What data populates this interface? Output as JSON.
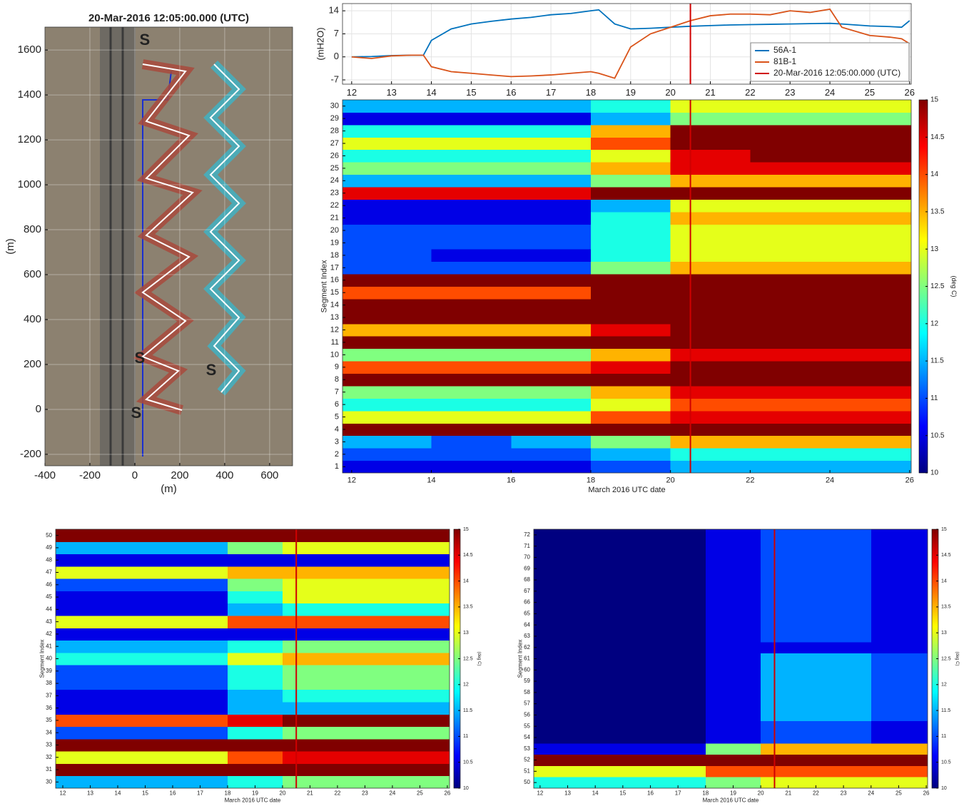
{
  "chart_data": [
    {
      "type": "map",
      "title": "20-Mar-2016 12:05:00.000 (UTC)",
      "xlabel": "(m)",
      "ylabel": "(m)",
      "xlim": [
        -400,
        702
      ],
      "ylim": [
        -251,
        1702
      ],
      "xticks": [
        -400,
        -200,
        0,
        200,
        400,
        600
      ],
      "yticks": [
        -200,
        0,
        200,
        400,
        600,
        800,
        1000,
        1200,
        1400,
        1600
      ],
      "grid": true,
      "annotation_color": "#e8202a",
      "annotations": [
        {
          "text": "S",
          "x": 44,
          "y": 1641
        },
        {
          "text": "S",
          "x": 22,
          "y": 225
        },
        {
          "text": "S",
          "x": 340,
          "y": 171
        },
        {
          "text": "S",
          "x": 6,
          "y": -19
        }
      ]
    },
    {
      "type": "line",
      "ylabel": "(mH2O)",
      "xlim": [
        11.77,
        26.04
      ],
      "ylim": [
        -8.3,
        16.2
      ],
      "xticks": [
        12,
        13,
        14,
        15,
        16,
        17,
        18,
        19,
        20,
        21,
        22,
        23,
        24,
        25,
        26
      ],
      "yticks": [
        -7,
        0,
        7,
        14
      ],
      "grid": true,
      "legend": "upper right",
      "x": [
        12,
        12.5,
        13,
        13.5,
        13.8,
        14,
        14.5,
        15,
        15.5,
        16,
        16.5,
        17,
        17.5,
        18,
        18.2,
        18.6,
        19,
        19.5,
        20,
        20.5,
        21,
        21.5,
        22,
        22.5,
        23,
        23.5,
        24,
        24.3,
        25,
        25.5,
        25.8,
        26
      ],
      "series": [
        {
          "name": "56A-1",
          "color": "#0072bd",
          "values": [
            0,
            0.1,
            0.4,
            0.5,
            0.5,
            5,
            8.5,
            10,
            10.8,
            11.5,
            12,
            12.8,
            13.2,
            14,
            14.3,
            10,
            8.5,
            8.7,
            9,
            9.3,
            9.5,
            9.7,
            9.8,
            9.9,
            10,
            10.1,
            10.2,
            10,
            9.4,
            9.2,
            9,
            11
          ]
        },
        {
          "name": "81B-1",
          "color": "#d95319",
          "values": [
            0,
            -0.5,
            0.3,
            0.5,
            0.5,
            -3,
            -4.5,
            -5,
            -5.5,
            -6,
            -5.8,
            -5.5,
            -5,
            -4.5,
            -5,
            -6.5,
            3,
            7,
            9,
            11,
            12.5,
            13,
            13,
            12.8,
            14,
            13.5,
            14.5,
            9,
            6.5,
            6,
            5.5,
            4
          ]
        }
      ],
      "vline": {
        "x": 20.5,
        "name": "20-Mar-2016 12:05:00.000 (UTC)",
        "color": "#d00000"
      }
    },
    {
      "type": "heatmap",
      "xlabel": "March 2016 UTC date",
      "ylabel": "Segment Index",
      "clabel": "(deg C)",
      "colormap": "jet",
      "clim": [
        10,
        15
      ],
      "cticks": [
        10,
        10.5,
        11,
        11.5,
        12,
        12.5,
        13,
        13.5,
        14,
        14.5,
        15
      ],
      "xlim": [
        11.77,
        26.04
      ],
      "ylim": [
        0.5,
        30.5
      ],
      "xticks": [
        12,
        14,
        16,
        18,
        20,
        22,
        24,
        26
      ],
      "yticks": [
        1,
        2,
        3,
        4,
        5,
        6,
        7,
        8,
        9,
        10,
        11,
        12,
        13,
        14,
        15,
        16,
        17,
        18,
        19,
        20,
        21,
        22,
        23,
        24,
        25,
        26,
        27,
        28,
        29,
        30
      ],
      "grid": false,
      "vline": 20.5,
      "vline_color": "#d00000",
      "x_edges": [
        11.77,
        14,
        16,
        18,
        20,
        22,
        24,
        26.04
      ],
      "y": [
        1,
        2,
        3,
        4,
        5,
        6,
        7,
        8,
        9,
        10,
        11,
        12,
        13,
        14,
        15,
        16,
        17,
        18,
        19,
        20,
        21,
        22,
        23,
        24,
        25,
        26,
        27,
        28,
        29,
        30
      ],
      "z": [
        [
          10.5,
          10.5,
          10.5,
          11,
          11.5,
          11.5,
          11.5
        ],
        [
          11,
          11,
          11,
          11.5,
          12,
          12,
          12
        ],
        [
          11.5,
          11,
          11.5,
          12.5,
          13.5,
          13.5,
          13.5
        ],
        [
          15,
          15,
          15,
          15,
          15,
          15,
          15
        ],
        [
          13,
          13,
          13,
          14,
          14.5,
          14.5,
          14.5
        ],
        [
          12,
          12,
          12,
          13,
          14,
          14,
          14
        ],
        [
          12.5,
          12.5,
          12.5,
          13.5,
          14.5,
          14.5,
          14.5
        ],
        [
          15,
          15,
          15,
          15,
          15,
          15,
          15
        ],
        [
          14,
          14,
          14,
          14.5,
          15,
          15,
          15
        ],
        [
          12.5,
          12.5,
          12.5,
          13.5,
          14.5,
          14.5,
          14.5
        ],
        [
          15,
          15,
          15,
          15,
          15,
          15,
          15
        ],
        [
          13.5,
          13.5,
          13.5,
          14.5,
          15,
          15,
          15
        ],
        [
          15,
          15,
          15,
          15,
          15,
          15,
          15
        ],
        [
          15,
          15,
          15,
          15,
          15,
          15,
          15
        ],
        [
          14,
          14,
          14,
          15,
          15,
          15,
          15
        ],
        [
          15,
          15,
          15,
          15,
          15,
          15,
          15
        ],
        [
          11,
          11,
          11,
          12.5,
          13.5,
          13.5,
          13.5
        ],
        [
          11,
          10.5,
          10.5,
          12,
          13,
          13,
          13
        ],
        [
          11,
          11,
          11,
          12,
          13,
          13,
          13
        ],
        [
          11,
          11,
          11,
          12,
          13,
          13,
          13
        ],
        [
          10.5,
          10.5,
          10.5,
          12,
          13.5,
          13.5,
          13.5
        ],
        [
          10.5,
          10.5,
          10.5,
          11.5,
          13,
          13,
          13
        ],
        [
          14.5,
          14.5,
          14.5,
          15,
          15,
          15,
          15
        ],
        [
          11.5,
          11.5,
          11.5,
          12.5,
          13.5,
          13.5,
          13.5
        ],
        [
          12.5,
          12.5,
          12.5,
          13.5,
          14.5,
          14.5,
          14.5
        ],
        [
          12,
          12,
          12,
          13,
          14.5,
          15,
          15
        ],
        [
          13,
          13,
          13,
          14,
          15,
          15,
          15
        ],
        [
          12,
          12,
          12,
          13.5,
          15,
          15,
          15
        ],
        [
          10.5,
          10.5,
          10.5,
          11.5,
          12.5,
          12.5,
          12.5
        ],
        [
          11.5,
          11.5,
          11.5,
          12,
          13,
          13,
          13
        ]
      ]
    },
    {
      "type": "heatmap",
      "xlabel": "March 2016 UTC date",
      "ylabel": "Segment Index",
      "clabel": "(deg C)",
      "colormap": "jet",
      "clim": [
        10,
        15
      ],
      "cticks": [
        10,
        10.5,
        11,
        11.5,
        12,
        12.5,
        13,
        13.5,
        14,
        14.5,
        15
      ],
      "xlim": [
        11.74,
        26.08
      ],
      "ylim": [
        29.5,
        50.5
      ],
      "xticks": [
        12,
        13,
        14,
        15,
        16,
        17,
        18,
        19,
        20,
        21,
        22,
        23,
        24,
        25,
        26
      ],
      "yticks": [
        30,
        31,
        32,
        33,
        34,
        35,
        36,
        37,
        38,
        39,
        40,
        41,
        42,
        43,
        44,
        45,
        46,
        47,
        48,
        49,
        50
      ],
      "grid": false,
      "vline": 20.5,
      "vline_color": "#d00000",
      "x_edges": [
        11.74,
        14,
        16,
        18,
        20,
        22,
        24,
        26.08
      ],
      "y": [
        30,
        31,
        32,
        33,
        34,
        35,
        36,
        37,
        38,
        39,
        40,
        41,
        42,
        43,
        44,
        45,
        46,
        47,
        48,
        49,
        50
      ],
      "z": [
        [
          11.5,
          11.5,
          11.5,
          12,
          12.5,
          12.5,
          12.5
        ],
        [
          15,
          15,
          15,
          15,
          15,
          15,
          15
        ],
        [
          13,
          13,
          13,
          14,
          14.5,
          14.5,
          14.5
        ],
        [
          15,
          15,
          15,
          15,
          15,
          15,
          15
        ],
        [
          11,
          11,
          11,
          12,
          12.5,
          12.5,
          12.5
        ],
        [
          14,
          14,
          14,
          14.5,
          15,
          15,
          15
        ],
        [
          10.5,
          10.5,
          10.5,
          11.5,
          11.5,
          11.5,
          11.5
        ],
        [
          10.5,
          10.5,
          10.5,
          11.5,
          12,
          12,
          12
        ],
        [
          11,
          11,
          11,
          12,
          12.5,
          12.5,
          12.5
        ],
        [
          11,
          11,
          11,
          12,
          12.5,
          12.5,
          12.5
        ],
        [
          12,
          12,
          12,
          13,
          13.5,
          13.5,
          13.5
        ],
        [
          11.5,
          11.5,
          11.5,
          12,
          12.5,
          12.5,
          12.5
        ],
        [
          10.5,
          10.5,
          10.5,
          10.5,
          10.5,
          10.5,
          10.5
        ],
        [
          13,
          13,
          13,
          14,
          14,
          14,
          14
        ],
        [
          10.5,
          10.5,
          10.5,
          11.5,
          12,
          12,
          12
        ],
        [
          10.5,
          10.5,
          10.5,
          12,
          13,
          13,
          13
        ],
        [
          11,
          11,
          11,
          12.5,
          13,
          13,
          13
        ],
        [
          13,
          13,
          13,
          13.5,
          13.5,
          13.5,
          13.5
        ],
        [
          10.5,
          10.5,
          10.5,
          10.5,
          10.5,
          10.5,
          10.5
        ],
        [
          11.5,
          11.5,
          11.5,
          12.5,
          13,
          13,
          13
        ],
        [
          15,
          15,
          15,
          15,
          15,
          15,
          15
        ]
      ]
    },
    {
      "type": "heatmap",
      "xlabel": "March 2016 UTC date",
      "ylabel": "Segment Index",
      "clabel": "(deg C)",
      "colormap": "jet",
      "clim": [
        10,
        15
      ],
      "cticks": [
        10,
        10.5,
        11,
        11.5,
        12,
        12.5,
        13,
        13.5,
        14,
        14.5,
        15
      ],
      "xlim": [
        11.77,
        26.05
      ],
      "ylim": [
        49.5,
        72.5
      ],
      "xticks": [
        12,
        13,
        14,
        15,
        16,
        17,
        18,
        19,
        20,
        21,
        22,
        23,
        24,
        25,
        26
      ],
      "yticks": [
        50,
        51,
        52,
        53,
        54,
        55,
        56,
        57,
        58,
        59,
        60,
        61,
        62,
        63,
        64,
        65,
        66,
        67,
        68,
        69,
        70,
        71,
        72
      ],
      "grid": false,
      "vline": 20.5,
      "vline_color": "#d00000",
      "x_edges": [
        11.77,
        14,
        16,
        18,
        20,
        22,
        24,
        26.05
      ],
      "y": [
        50,
        51,
        52,
        53,
        54,
        55,
        56,
        57,
        58,
        59,
        60,
        61,
        62,
        63,
        64,
        65,
        66,
        67,
        68,
        69,
        70,
        71,
        72
      ],
      "z": [
        [
          12,
          12,
          12,
          12.5,
          13,
          13,
          13
        ],
        [
          13,
          13,
          13,
          14,
          14,
          14,
          14
        ],
        [
          15,
          15,
          15,
          15,
          15,
          15,
          15
        ],
        [
          10.5,
          10.5,
          10.5,
          12.5,
          13.5,
          13.5,
          13.5
        ],
        [
          10,
          10,
          10,
          10.5,
          11,
          11,
          10.5
        ],
        [
          10,
          10,
          10,
          10.5,
          11,
          11,
          10.5
        ],
        [
          10,
          10,
          10,
          10.5,
          11.5,
          11.5,
          11
        ],
        [
          10,
          10,
          10,
          10.5,
          11.5,
          11.5,
          11
        ],
        [
          10,
          10,
          10,
          10.5,
          11.5,
          11.5,
          11
        ],
        [
          10,
          10,
          10,
          10.5,
          11.5,
          11.5,
          11
        ],
        [
          10,
          10,
          10,
          10.5,
          11.5,
          11.5,
          11
        ],
        [
          10,
          10,
          10,
          10.5,
          11.5,
          11.5,
          11
        ],
        [
          10,
          10,
          10,
          10.5,
          10.5,
          10.5,
          10.5
        ],
        [
          10,
          10,
          10,
          10.5,
          11,
          11,
          10.5
        ],
        [
          10,
          10,
          10,
          10.5,
          11,
          11,
          10.5
        ],
        [
          10,
          10,
          10,
          10.5,
          11,
          11,
          10.5
        ],
        [
          10,
          10,
          10,
          10.5,
          11,
          11,
          10.5
        ],
        [
          10,
          10,
          10,
          10.5,
          11,
          11,
          10.5
        ],
        [
          10,
          10,
          10,
          10.5,
          11,
          11,
          10.5
        ],
        [
          10,
          10,
          10,
          10.5,
          11,
          11,
          10.5
        ],
        [
          10,
          10,
          10,
          10.5,
          11,
          11,
          10.5
        ],
        [
          10,
          10,
          10,
          10.5,
          11,
          11,
          10.5
        ],
        [
          10,
          10,
          10,
          10.5,
          11,
          11,
          10.5
        ]
      ]
    }
  ]
}
